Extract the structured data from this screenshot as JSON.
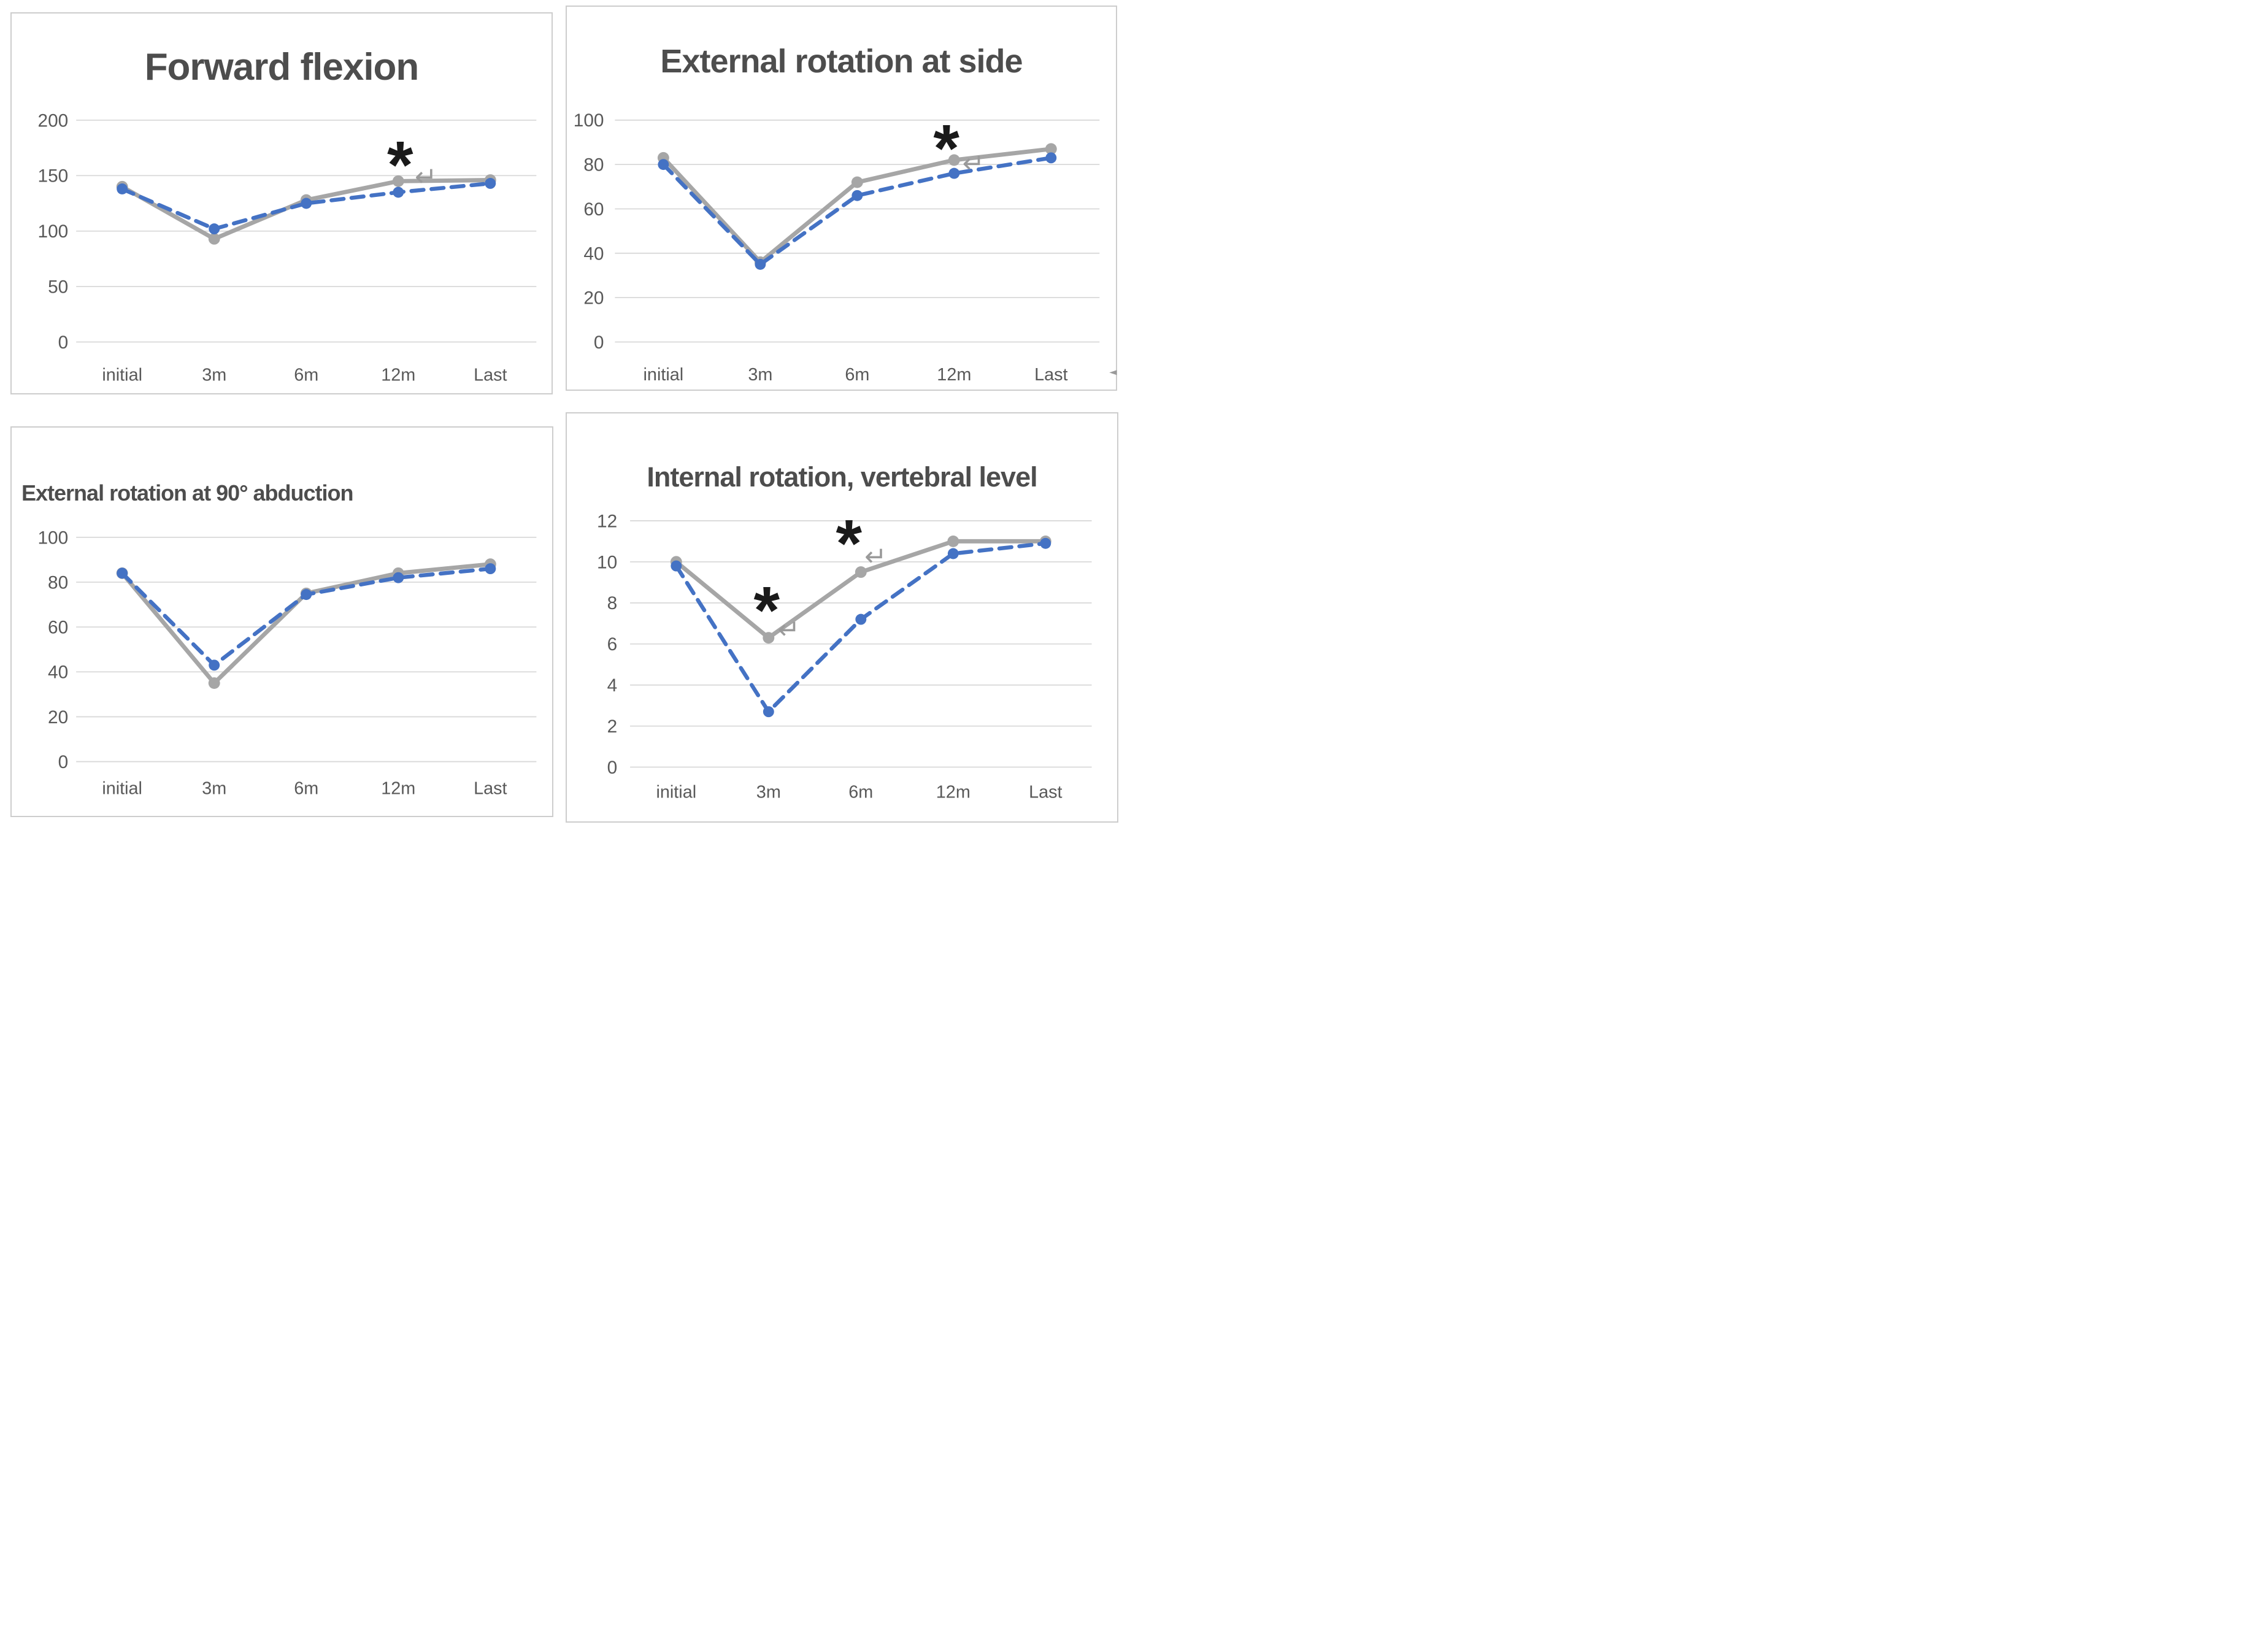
{
  "figure": {
    "description": "2x2 grid of line charts comparing two unlabeled series (gray solid, blue dashed) across follow-up timepoints"
  },
  "colors": {
    "background": "#ffffff",
    "panel_border": "#cdcdcd",
    "gridline": "#d9d9d9",
    "axis_text": "#595959",
    "title_text": "#4d4d4d",
    "series_gray": "#a6a6a6",
    "series_blue": "#4472c4",
    "annotation_black": "#1a1a1a",
    "glyph_gray": "#9a9a9a"
  },
  "chart_data": [
    {
      "type": "line",
      "title": "Forward flexion",
      "categories": [
        "initial",
        "3m",
        "6m",
        "12m",
        "Last"
      ],
      "y_ticks": [
        0,
        50,
        100,
        150,
        200
      ],
      "ylim": [
        0,
        200
      ],
      "grid": true,
      "legend": "none",
      "series": [
        {
          "name": "gray-solid",
          "color": "#a6a6a6",
          "style": "solid",
          "marker": "circle",
          "values": [
            140,
            93,
            128,
            145,
            146
          ]
        },
        {
          "name": "blue-dashed",
          "color": "#4472c4",
          "style": "dashed",
          "marker": "circle",
          "values": [
            138,
            102,
            125,
            135,
            143
          ]
        }
      ],
      "annotations": [
        {
          "type": "asterisk",
          "label": "*",
          "x_cat": 3,
          "x_off": 0.02,
          "value": 169
        },
        {
          "type": "return-glyph",
          "label": "↵",
          "x_cat": 3,
          "x_off": 0.3,
          "value": 148
        }
      ]
    },
    {
      "type": "line",
      "title": "External rotation at side",
      "categories": [
        "initial",
        "3m",
        "6m",
        "12m",
        "Last"
      ],
      "y_ticks": [
        0,
        20,
        40,
        60,
        80,
        100
      ],
      "ylim": [
        0,
        100
      ],
      "grid": true,
      "legend": "none",
      "series": [
        {
          "name": "gray-solid",
          "color": "#a6a6a6",
          "style": "solid",
          "marker": "circle",
          "values": [
            83,
            36,
            72,
            82,
            87
          ]
        },
        {
          "name": "blue-dashed",
          "color": "#4472c4",
          "style": "dashed",
          "marker": "circle",
          "values": [
            80,
            35,
            66,
            76,
            83
          ]
        }
      ],
      "annotations": [
        {
          "type": "asterisk",
          "label": "*",
          "x_cat": 3,
          "x_off": -0.08,
          "value": 92
        },
        {
          "type": "return-glyph",
          "label": "↵",
          "x_cat": 3,
          "x_off": 0.2,
          "value": 80
        },
        {
          "type": "edge-arrow",
          "label": "◄",
          "x_cat": 4,
          "x_off": 0.64,
          "value": -13.3
        }
      ]
    },
    {
      "type": "line",
      "title": "External rotation at 90° abduction",
      "categories": [
        "initial",
        "3m",
        "6m",
        "12m",
        "Last"
      ],
      "y_ticks": [
        0,
        20,
        40,
        60,
        80,
        100
      ],
      "ylim": [
        0,
        100
      ],
      "grid": true,
      "legend": "none",
      "series": [
        {
          "name": "gray-solid",
          "color": "#a6a6a6",
          "style": "solid",
          "marker": "circle",
          "values": [
            84,
            35,
            75,
            84,
            88
          ]
        },
        {
          "name": "blue-dashed",
          "color": "#4472c4",
          "style": "dashed",
          "marker": "circle",
          "values": [
            84,
            43,
            74.5,
            82,
            86
          ]
        }
      ],
      "annotations": []
    },
    {
      "type": "line",
      "title": "Internal rotation, vertebral level",
      "categories": [
        "initial",
        "3m",
        "6m",
        "12m",
        "Last"
      ],
      "y_ticks": [
        0,
        2,
        4,
        6,
        8,
        10,
        12
      ],
      "ylim": [
        0,
        12
      ],
      "grid": true,
      "legend": "none",
      "series": [
        {
          "name": "gray-solid",
          "color": "#a6a6a6",
          "style": "solid",
          "marker": "circle",
          "values": [
            10,
            6.3,
            9.5,
            11,
            11
          ]
        },
        {
          "name": "blue-dashed",
          "color": "#4472c4",
          "style": "dashed",
          "marker": "circle",
          "values": [
            9.8,
            2.7,
            7.2,
            10.4,
            10.9
          ]
        }
      ],
      "annotations": [
        {
          "type": "asterisk",
          "label": "*",
          "x_cat": 1,
          "x_off": -0.02,
          "value": 8.15
        },
        {
          "type": "asterisk",
          "label": "*",
          "x_cat": 2,
          "x_off": -0.13,
          "value": 11.4
        },
        {
          "type": "return-glyph",
          "label": "↵",
          "x_cat": 1,
          "x_off": 0.22,
          "value": 6.65
        },
        {
          "type": "return-glyph",
          "label": "↵",
          "x_cat": 2,
          "x_off": 0.16,
          "value": 10.2
        }
      ]
    }
  ]
}
